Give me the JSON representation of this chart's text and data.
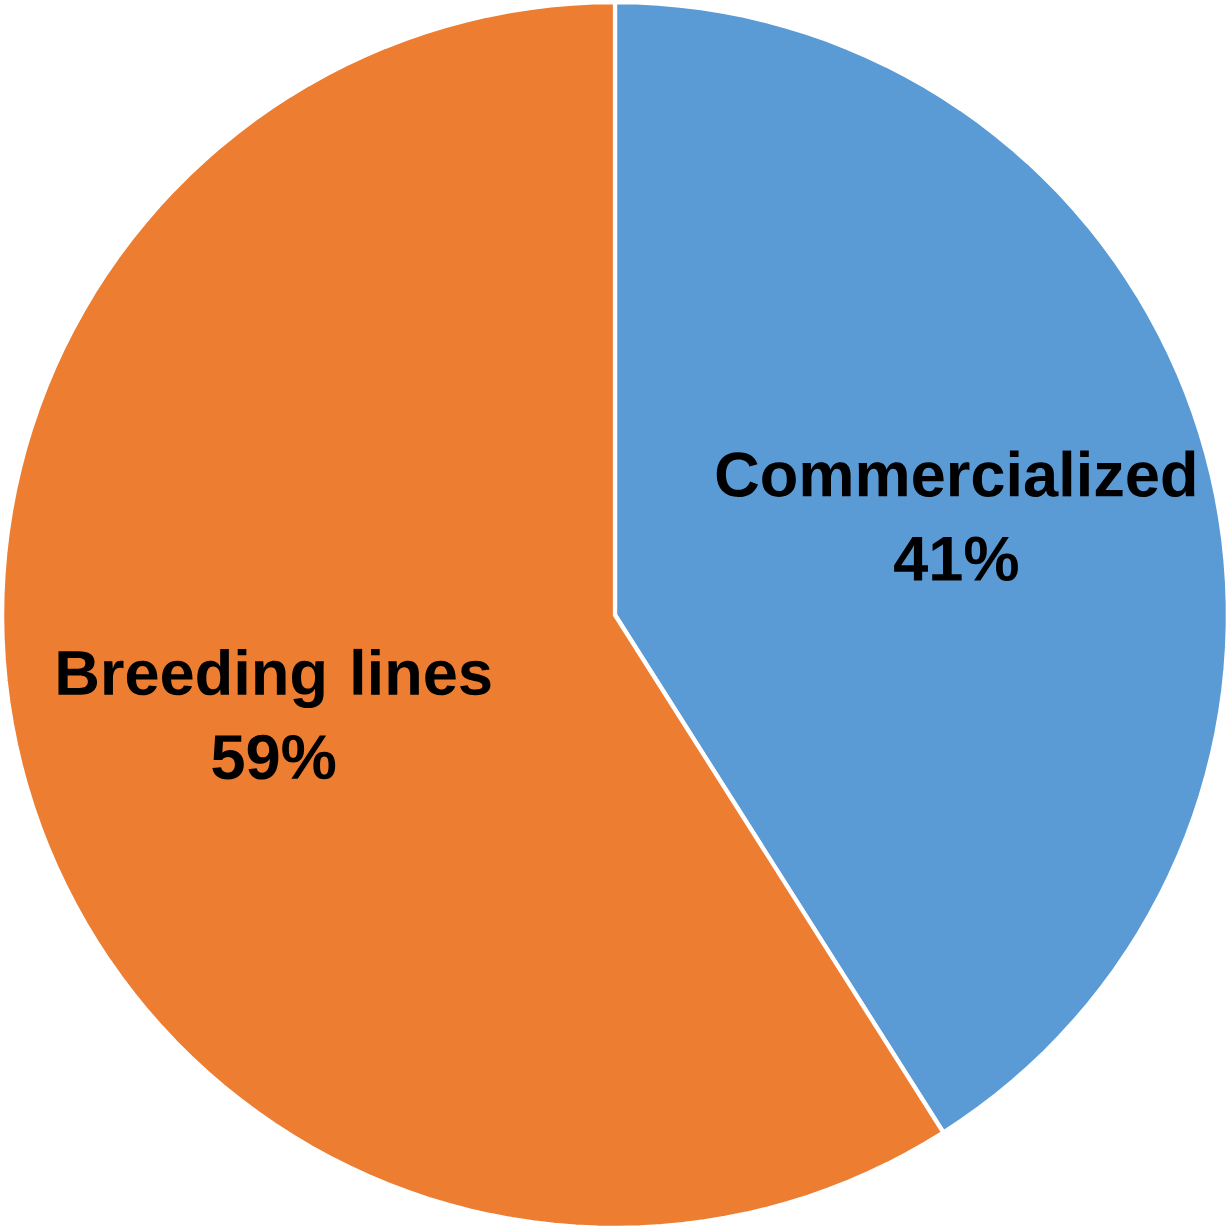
{
  "chart_data": {
    "type": "pie",
    "categories": [
      "Commercialized",
      "Breeding lines"
    ],
    "values": [
      41,
      59
    ],
    "value_labels": [
      "41%",
      "59%"
    ],
    "colors": [
      "#5b9bd5",
      "#ed7d31"
    ]
  }
}
